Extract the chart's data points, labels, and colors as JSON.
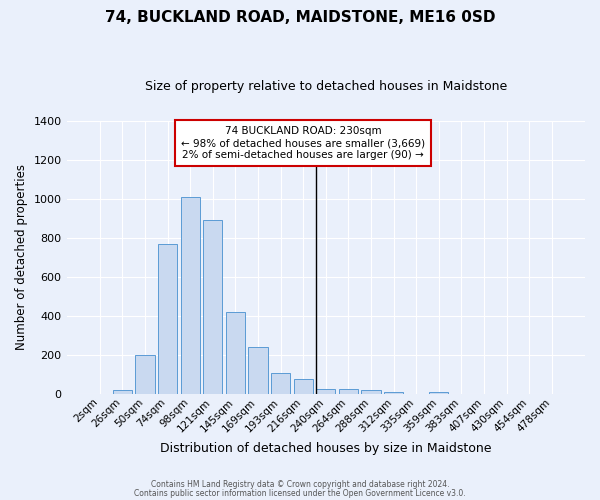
{
  "title": "74, BUCKLAND ROAD, MAIDSTONE, ME16 0SD",
  "subtitle": "Size of property relative to detached houses in Maidstone",
  "xlabel": "Distribution of detached houses by size in Maidstone",
  "ylabel": "Number of detached properties",
  "bar_labels": [
    "2sqm",
    "26sqm",
    "50sqm",
    "74sqm",
    "98sqm",
    "121sqm",
    "145sqm",
    "169sqm",
    "193sqm",
    "216sqm",
    "240sqm",
    "264sqm",
    "288sqm",
    "312sqm",
    "335sqm",
    "359sqm",
    "383sqm",
    "407sqm",
    "430sqm",
    "454sqm",
    "478sqm"
  ],
  "bar_values": [
    0,
    20,
    200,
    770,
    1010,
    890,
    420,
    240,
    110,
    75,
    25,
    28,
    20,
    10,
    0,
    10,
    0,
    0,
    0,
    0,
    0
  ],
  "bar_color": "#c9d9f0",
  "bar_edge_color": "#5b9bd5",
  "bg_color": "#eaf0fb",
  "grid_color": "#ffffff",
  "ylim": [
    0,
    1400
  ],
  "yticks": [
    0,
    200,
    400,
    600,
    800,
    1000,
    1200,
    1400
  ],
  "annotation_line1": "74 BUCKLAND ROAD: 230sqm",
  "annotation_line2": "← 98% of detached houses are smaller (3,669)",
  "annotation_line3": "2% of semi-detached houses are larger (90) →",
  "annotation_box_color": "#ffffff",
  "annotation_box_edge_color": "#cc0000",
  "vline_color": "#000000",
  "footer1": "Contains HM Land Registry data © Crown copyright and database right 2024.",
  "footer2": "Contains public sector information licensed under the Open Government Licence v3.0."
}
